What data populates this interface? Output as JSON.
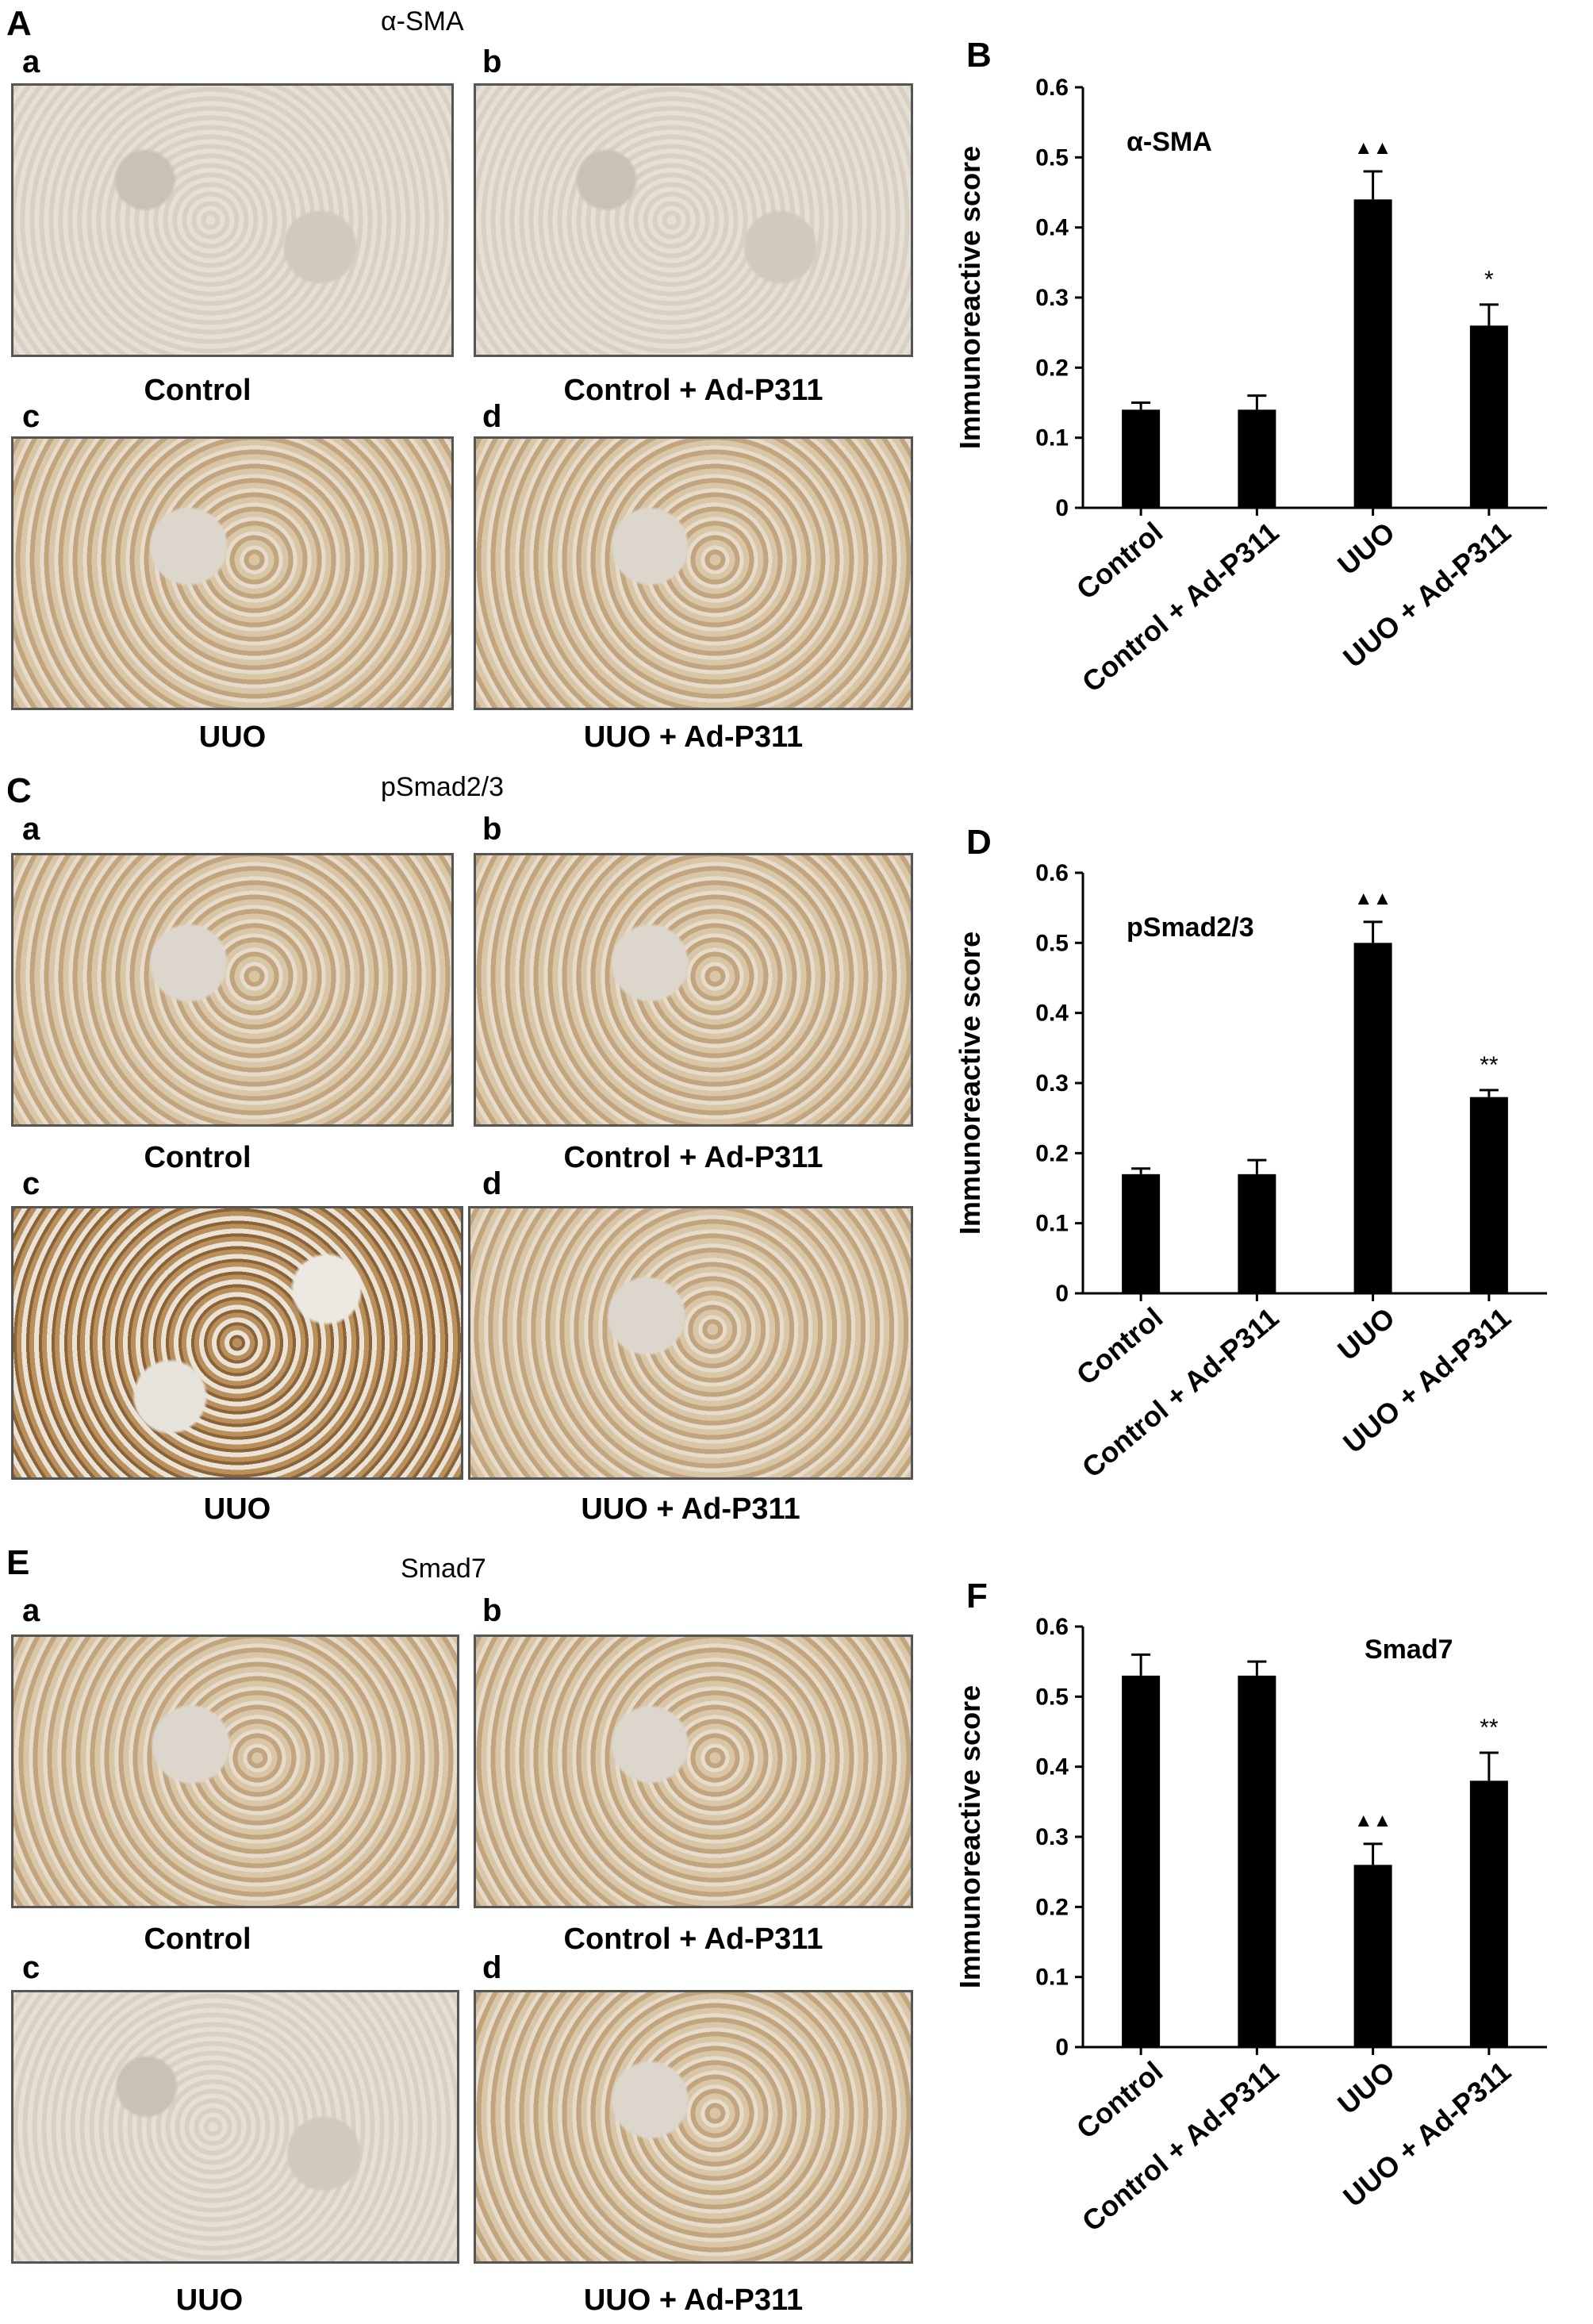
{
  "panels": [
    {
      "letter": "A",
      "marker": "α-SMA",
      "images": [
        {
          "sub": "a",
          "caption": "Control",
          "tone": "pale"
        },
        {
          "sub": "b",
          "caption": "Control + Ad-P311",
          "tone": "pale"
        },
        {
          "sub": "c",
          "caption": "UUO",
          "tone": "tan"
        },
        {
          "sub": "d",
          "caption": "UUO + Ad-P311",
          "tone": "tan"
        }
      ]
    },
    {
      "letter": "C",
      "marker": "pSmad2/3",
      "images": [
        {
          "sub": "a",
          "caption": "Control",
          "tone": "tan"
        },
        {
          "sub": "b",
          "caption": "Control + Ad-P311",
          "tone": "tan"
        },
        {
          "sub": "c",
          "caption": "UUO",
          "tone": "brown"
        },
        {
          "sub": "d",
          "caption": "UUO + Ad-P311",
          "tone": "tan"
        }
      ]
    },
    {
      "letter": "E",
      "marker": "Smad7",
      "images": [
        {
          "sub": "a",
          "caption": "Control",
          "tone": "tan"
        },
        {
          "sub": "b",
          "caption": "Control + Ad-P311",
          "tone": "tan"
        },
        {
          "sub": "c",
          "caption": "UUO",
          "tone": "pale"
        },
        {
          "sub": "d",
          "caption": "UUO + Ad-P311",
          "tone": "tan"
        }
      ]
    }
  ],
  "chart_data": [
    {
      "panel": "B",
      "type": "bar",
      "title": "α-SMA",
      "ylabel": "Immunoreactive score",
      "xlabel": "",
      "categories": [
        "Control",
        "Control + Ad-P311",
        "UUO",
        "UUO + Ad-P311"
      ],
      "values": [
        0.14,
        0.14,
        0.44,
        0.26
      ],
      "errors": [
        0.01,
        0.02,
        0.04,
        0.03
      ],
      "annotations": [
        "",
        "",
        "▲▲",
        "*"
      ],
      "ylim": [
        0,
        0.6
      ],
      "yticks": [
        "0",
        "0.1",
        "0.2",
        "0.3",
        "0.4",
        "0.5",
        "0.6"
      ],
      "bar_color": "#000000",
      "legend": "none"
    },
    {
      "panel": "D",
      "type": "bar",
      "title": "pSmad2/3",
      "ylabel": "Immunoreactive score",
      "xlabel": "",
      "categories": [
        "Control",
        "Control + Ad-P311",
        "UUO",
        "UUO + Ad-P311"
      ],
      "values": [
        0.17,
        0.17,
        0.5,
        0.28
      ],
      "errors": [
        0.008,
        0.02,
        0.03,
        0.01
      ],
      "annotations": [
        "",
        "",
        "▲▲",
        "**"
      ],
      "ylim": [
        0,
        0.6
      ],
      "yticks": [
        "0",
        "0.1",
        "0.2",
        "0.3",
        "0.4",
        "0.5",
        "0.6"
      ],
      "bar_color": "#000000",
      "legend": "none"
    },
    {
      "panel": "F",
      "type": "bar",
      "title": "Smad7",
      "ylabel": "Immunoreactive score",
      "xlabel": "",
      "categories": [
        "Control",
        "Control + Ad-P311",
        "UUO",
        "UUO + Ad-P311"
      ],
      "values": [
        0.53,
        0.53,
        0.26,
        0.38
      ],
      "errors": [
        0.03,
        0.02,
        0.03,
        0.04
      ],
      "annotations": [
        "",
        "",
        "▲▲",
        "**"
      ],
      "ylim": [
        0,
        0.6
      ],
      "yticks": [
        "0",
        "0.1",
        "0.2",
        "0.3",
        "0.4",
        "0.5",
        "0.6"
      ],
      "bar_color": "#000000",
      "legend": "none"
    }
  ]
}
